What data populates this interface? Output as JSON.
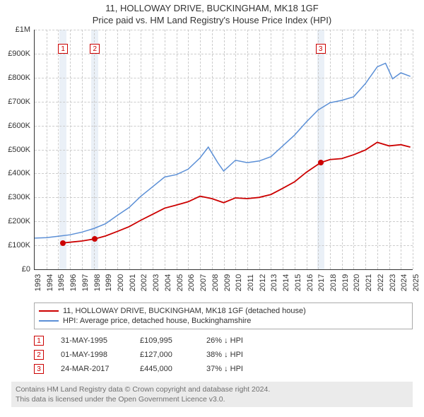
{
  "title_line1": "11, HOLLOWAY DRIVE, BUCKINGHAM, MK18 1GF",
  "title_line2": "Price paid vs. HM Land Registry's House Price Index (HPI)",
  "chart": {
    "type": "line",
    "background_color": "#ffffff",
    "grid_color": "#cccccc",
    "grid_dash": "3,3",
    "axis_color": "#333333",
    "x_start_year": 1993,
    "x_end_year": 2025,
    "xticks": [
      1993,
      1994,
      1995,
      1996,
      1997,
      1998,
      1999,
      2000,
      2001,
      2002,
      2003,
      2004,
      2005,
      2006,
      2007,
      2008,
      2009,
      2010,
      2011,
      2012,
      2013,
      2014,
      2015,
      2016,
      2017,
      2018,
      2019,
      2020,
      2021,
      2022,
      2023,
      2024,
      2025
    ],
    "ylim": [
      0,
      1000000
    ],
    "ytick_step": 100000,
    "yticks": [
      0,
      100000,
      200000,
      300000,
      400000,
      500000,
      600000,
      700000,
      800000,
      900000,
      1000000
    ],
    "ytick_labels": [
      "£0",
      "£100K",
      "£200K",
      "£300K",
      "£400K",
      "£500K",
      "£600K",
      "£700K",
      "£800K",
      "£900K",
      "£1M"
    ],
    "label_fontsize": 11,
    "shade_bands": [
      {
        "from": 1995.1,
        "to": 1995.7,
        "color": "#eaf0f7"
      },
      {
        "from": 1997.8,
        "to": 1998.4,
        "color": "#eaf0f7"
      },
      {
        "from": 2016.9,
        "to": 2017.5,
        "color": "#eaf0f7"
      }
    ],
    "markers": [
      {
        "num": "1",
        "x": 1995.4,
        "y_top": 20
      },
      {
        "num": "2",
        "x": 1998.1,
        "y_top": 20
      },
      {
        "num": "3",
        "x": 2017.2,
        "y_top": 20
      }
    ],
    "series": [
      {
        "name": "property",
        "color": "#cc0000",
        "line_width": 1.8,
        "points": [
          [
            1995.4,
            109995
          ],
          [
            1996,
            113000
          ],
          [
            1997,
            118000
          ],
          [
            1998.1,
            127000
          ],
          [
            1999,
            139000
          ],
          [
            2000,
            158000
          ],
          [
            2001,
            178000
          ],
          [
            2002,
            205000
          ],
          [
            2003,
            230000
          ],
          [
            2004,
            255000
          ],
          [
            2005,
            268000
          ],
          [
            2006,
            282000
          ],
          [
            2007,
            305000
          ],
          [
            2008,
            295000
          ],
          [
            2009,
            278000
          ],
          [
            2010,
            298000
          ],
          [
            2011,
            295000
          ],
          [
            2012,
            300000
          ],
          [
            2013,
            312000
          ],
          [
            2014,
            338000
          ],
          [
            2015,
            365000
          ],
          [
            2016,
            405000
          ],
          [
            2017.2,
            445000
          ],
          [
            2018,
            458000
          ],
          [
            2019,
            462000
          ],
          [
            2020,
            478000
          ],
          [
            2021,
            498000
          ],
          [
            2022,
            530000
          ],
          [
            2023,
            515000
          ],
          [
            2024,
            520000
          ],
          [
            2024.8,
            510000
          ]
        ],
        "dots": [
          {
            "x": 1995.4,
            "y": 109995
          },
          {
            "x": 1998.1,
            "y": 127000
          },
          {
            "x": 2017.2,
            "y": 445000
          }
        ]
      },
      {
        "name": "hpi",
        "color": "#5b8fd6",
        "line_width": 1.5,
        "points": [
          [
            1993,
            130000
          ],
          [
            1994,
            132000
          ],
          [
            1995,
            138000
          ],
          [
            1996,
            144000
          ],
          [
            1997,
            155000
          ],
          [
            1998,
            170000
          ],
          [
            1999,
            190000
          ],
          [
            2000,
            225000
          ],
          [
            2001,
            258000
          ],
          [
            2002,
            305000
          ],
          [
            2003,
            345000
          ],
          [
            2004,
            385000
          ],
          [
            2005,
            395000
          ],
          [
            2006,
            418000
          ],
          [
            2007,
            465000
          ],
          [
            2007.7,
            510000
          ],
          [
            2008.5,
            445000
          ],
          [
            2009,
            410000
          ],
          [
            2010,
            455000
          ],
          [
            2011,
            445000
          ],
          [
            2012,
            452000
          ],
          [
            2013,
            470000
          ],
          [
            2014,
            515000
          ],
          [
            2015,
            560000
          ],
          [
            2016,
            615000
          ],
          [
            2017,
            665000
          ],
          [
            2018,
            695000
          ],
          [
            2019,
            705000
          ],
          [
            2020,
            720000
          ],
          [
            2021,
            775000
          ],
          [
            2022,
            845000
          ],
          [
            2022.7,
            860000
          ],
          [
            2023.3,
            795000
          ],
          [
            2024,
            820000
          ],
          [
            2024.8,
            805000
          ]
        ]
      }
    ]
  },
  "legend": {
    "items": [
      {
        "color": "#cc0000",
        "label": "11, HOLLOWAY DRIVE, BUCKINGHAM, MK18 1GF (detached house)"
      },
      {
        "color": "#5b8fd6",
        "label": "HPI: Average price, detached house, Buckinghamshire"
      }
    ]
  },
  "sales": [
    {
      "num": "1",
      "date": "31-MAY-1995",
      "price": "£109,995",
      "pct": "26% ↓ HPI"
    },
    {
      "num": "2",
      "date": "01-MAY-1998",
      "price": "£127,000",
      "pct": "38% ↓ HPI"
    },
    {
      "num": "3",
      "date": "24-MAR-2017",
      "price": "£445,000",
      "pct": "37% ↓ HPI"
    }
  ],
  "footer": {
    "line1": "Contains HM Land Registry data © Crown copyright and database right 2024.",
    "line2": "This data is licensed under the Open Government Licence v3.0."
  }
}
